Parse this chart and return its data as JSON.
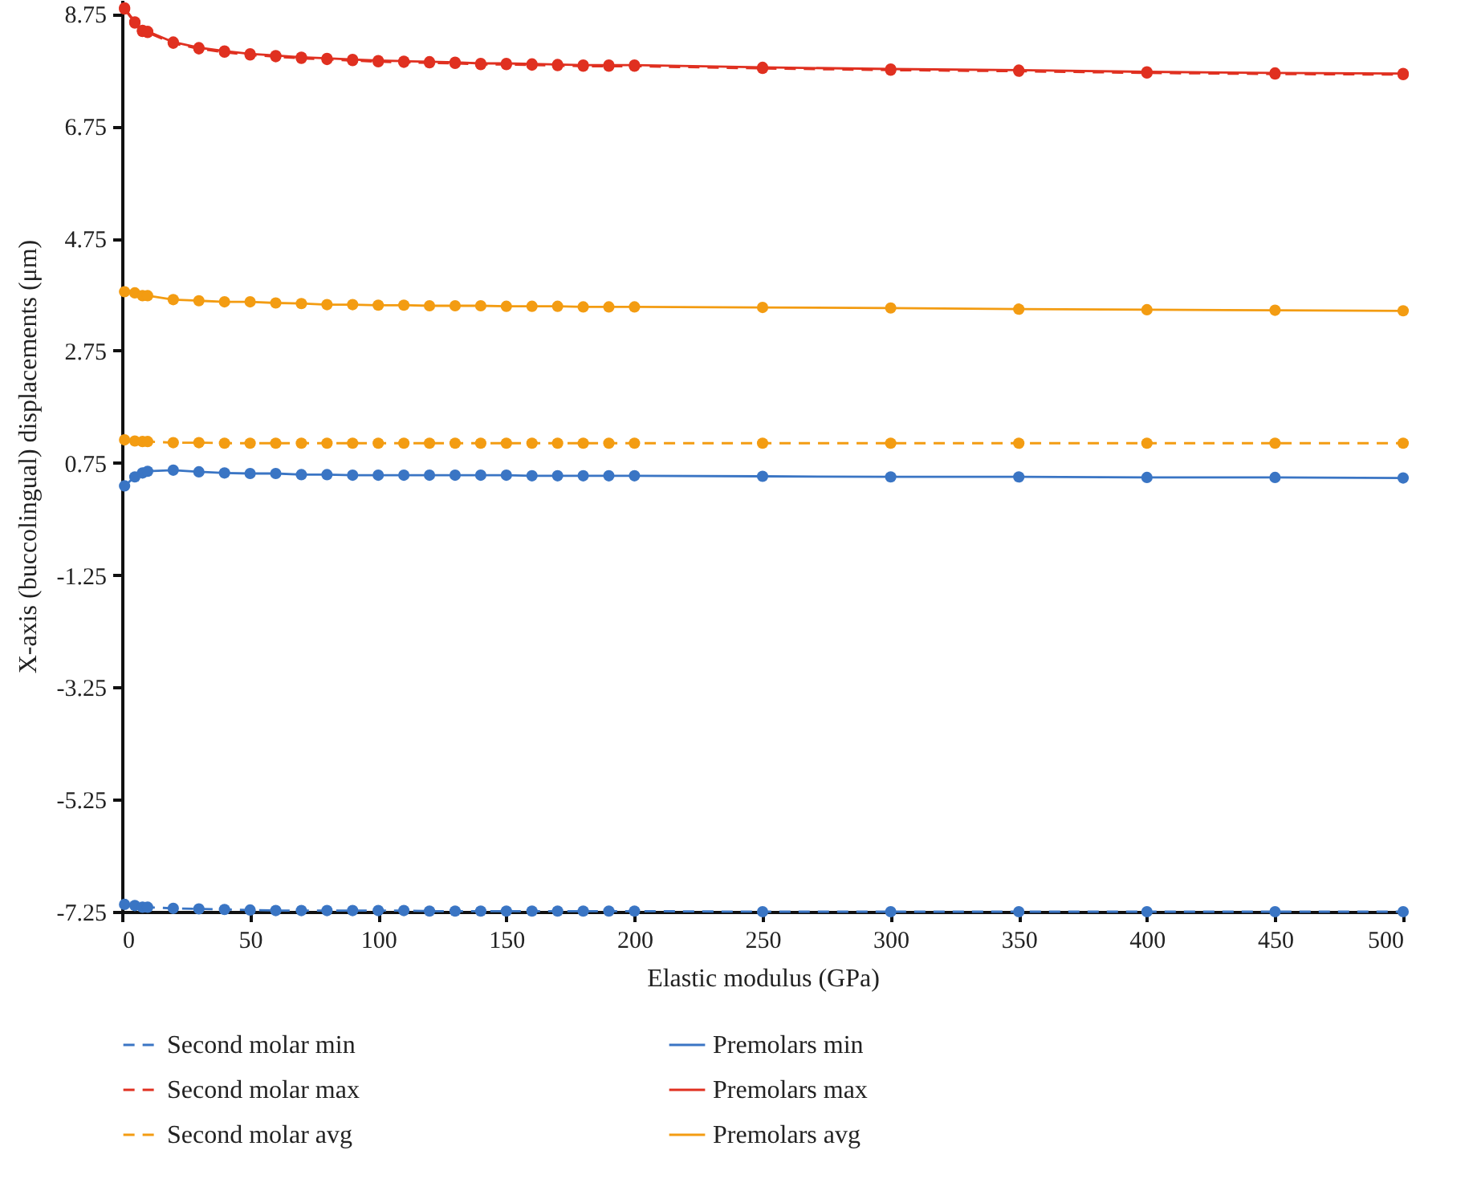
{
  "chart_data": {
    "type": "line",
    "xlabel": "Elastic modulus (GPa)",
    "ylabel": "X-axis (buccolingual) displacements (μm)",
    "x": [
      1,
      5,
      8,
      10,
      20,
      30,
      40,
      50,
      60,
      70,
      80,
      90,
      100,
      110,
      120,
      130,
      140,
      150,
      160,
      170,
      180,
      190,
      200,
      250,
      300,
      350,
      400,
      450,
      500
    ],
    "xlim": [
      0,
      500
    ],
    "xticks": [
      0,
      50,
      100,
      150,
      200,
      250,
      300,
      350,
      400,
      450,
      500
    ],
    "ylim": [
      -7.25,
      9.0
    ],
    "yticks": [
      -7.25,
      -5.25,
      -3.25,
      -1.25,
      0.75,
      2.75,
      4.75,
      6.75,
      8.75
    ],
    "grid": false,
    "legend": "bottom",
    "marker": "circle",
    "series": [
      {
        "name": "Second molar min",
        "color": "#3a75c4",
        "line_style": "dashed",
        "values": [
          -7.12,
          -7.14,
          -7.17,
          -7.17,
          -7.19,
          -7.2,
          -7.21,
          -7.22,
          -7.23,
          -7.23,
          -7.23,
          -7.23,
          -7.23,
          -7.23,
          -7.24,
          -7.24,
          -7.24,
          -7.24,
          -7.24,
          -7.24,
          -7.24,
          -7.24,
          -7.24,
          -7.25,
          -7.25,
          -7.25,
          -7.25,
          -7.25,
          -7.25
        ]
      },
      {
        "name": "Second molar max",
        "color": "#e03020",
        "line_style": "dashed",
        "values": [
          8.84,
          8.59,
          8.44,
          8.42,
          8.23,
          8.13,
          8.07,
          8.02,
          7.99,
          7.96,
          7.94,
          7.92,
          7.9,
          7.89,
          7.88,
          7.87,
          7.85,
          7.85,
          7.84,
          7.83,
          7.82,
          7.82,
          7.82,
          7.78,
          7.75,
          7.73,
          7.7,
          7.68,
          7.67
        ]
      },
      {
        "name": "Second molar avg",
        "color": "#f39c12",
        "line_style": "dashed",
        "values": [
          1.16,
          1.14,
          1.13,
          1.13,
          1.11,
          1.11,
          1.1,
          1.1,
          1.1,
          1.1,
          1.1,
          1.1,
          1.1,
          1.1,
          1.1,
          1.1,
          1.1,
          1.1,
          1.1,
          1.1,
          1.1,
          1.1,
          1.1,
          1.1,
          1.1,
          1.1,
          1.1,
          1.1,
          1.1
        ]
      },
      {
        "name": "Premolars min",
        "color": "#3a75c4",
        "line_style": "solid",
        "values": [
          0.34,
          0.5,
          0.57,
          0.6,
          0.62,
          0.59,
          0.57,
          0.56,
          0.56,
          0.54,
          0.54,
          0.53,
          0.53,
          0.53,
          0.53,
          0.53,
          0.53,
          0.53,
          0.52,
          0.52,
          0.52,
          0.52,
          0.52,
          0.51,
          0.5,
          0.5,
          0.49,
          0.49,
          0.48
        ]
      },
      {
        "name": "Premolars max",
        "color": "#e03020",
        "line_style": "solid",
        "values": [
          8.86,
          8.61,
          8.46,
          8.44,
          8.25,
          8.15,
          8.09,
          8.04,
          8.01,
          7.98,
          7.96,
          7.94,
          7.92,
          7.91,
          7.9,
          7.89,
          7.87,
          7.87,
          7.86,
          7.85,
          7.84,
          7.84,
          7.84,
          7.8,
          7.77,
          7.75,
          7.72,
          7.7,
          7.69
        ]
      },
      {
        "name": "Premolars avg",
        "color": "#f39c12",
        "line_style": "solid",
        "values": [
          3.8,
          3.78,
          3.73,
          3.73,
          3.66,
          3.64,
          3.62,
          3.62,
          3.6,
          3.59,
          3.57,
          3.57,
          3.56,
          3.56,
          3.55,
          3.55,
          3.55,
          3.54,
          3.54,
          3.54,
          3.53,
          3.53,
          3.53,
          3.52,
          3.51,
          3.49,
          3.48,
          3.47,
          3.46
        ]
      }
    ]
  }
}
